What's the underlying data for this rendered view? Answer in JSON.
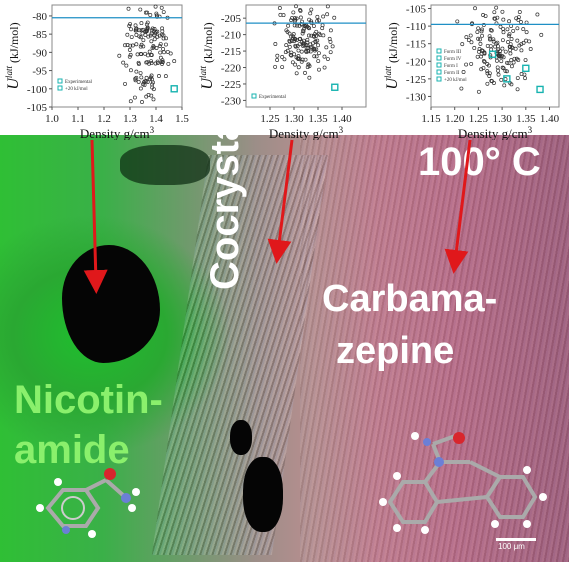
{
  "chart_data": [
    {
      "type": "scatter",
      "ylabel_main": "U",
      "ylabel_sup": "latt",
      "ylabel_unit": "(kJ/mol)",
      "xlabel": "Density  g/cm",
      "xlabel_sup": "3",
      "xlim": [
        1.0,
        1.5
      ],
      "ylim": [
        -105,
        -77
      ],
      "yticks": [
        "-80",
        "-85",
        "-90",
        "-95",
        "-100",
        "-105"
      ],
      "xticks": [
        "1.0",
        "1.1",
        "1.2",
        "1.3",
        "1.4",
        "1.5"
      ],
      "hline": -80.5,
      "legend": [
        "Experimental",
        "+20 kJ/mol"
      ],
      "experimental": [
        {
          "x": 1.47,
          "y": -100
        }
      ]
    },
    {
      "type": "scatter",
      "ylabel_main": "U",
      "ylabel_sup": "latt",
      "ylabel_unit": "(kJ/mol)",
      "xlabel": "Density  g/cm",
      "xlabel_sup": "3",
      "xlim": [
        1.2,
        1.45
      ],
      "ylim": [
        -232,
        -201
      ],
      "yticks": [
        "-205",
        "-210",
        "-215",
        "-220",
        "-225",
        "-230"
      ],
      "xticks": [
        "1.25",
        "1.30",
        "1.35",
        "1.40"
      ],
      "hline": -206.5,
      "legend": [
        "Experimental"
      ],
      "experimental": [
        {
          "x": 1.385,
          "y": -226
        }
      ]
    },
    {
      "type": "scatter",
      "ylabel_main": "U",
      "ylabel_sup": "latt",
      "ylabel_unit": "(kJ/mol)",
      "xlabel": "Density  g/cm",
      "xlabel_sup": "3",
      "xlim": [
        1.15,
        1.42
      ],
      "ylim": [
        -133,
        -104
      ],
      "yticks": [
        "-105",
        "-110",
        "-115",
        "-120",
        "-125",
        "-130"
      ],
      "xticks": [
        "1.15",
        "1.20",
        "1.25",
        "1.30",
        "1.35",
        "1.40"
      ],
      "hline": -109.5,
      "legend": [
        "Form III",
        "Form IV",
        "Form I",
        "Form II",
        "+20 kJ/mol"
      ],
      "experimental": [
        {
          "x": 1.28,
          "y": -118
        },
        {
          "x": 1.31,
          "y": -125
        },
        {
          "x": 1.38,
          "y": -128
        },
        {
          "x": 1.35,
          "y": -122
        }
      ]
    }
  ],
  "image": {
    "temperature": "100° C",
    "labels": {
      "cocrystal": "Cocrystal",
      "carbamazepine_1": "Carbama-",
      "carbamazepine_2": "zepine",
      "nicotinamide_1": "Nicotin-",
      "nicotinamide_2": "amide"
    },
    "scale_bar": "100 μm"
  },
  "colors": {
    "arrow": "#e0181b",
    "hline": "#1f8fc5",
    "experimental": "#17b3b0",
    "marker": "#333333"
  }
}
